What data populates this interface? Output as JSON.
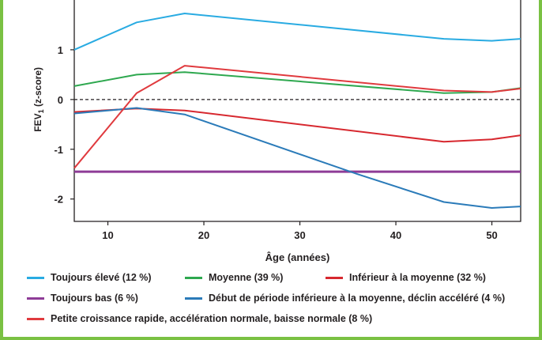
{
  "chart_data": {
    "type": "line",
    "xlabel": "Âge (années)",
    "ylabel_main": "FEV",
    "ylabel_sub": "1",
    "ylabel_rest": " (z-score)",
    "xlim": [
      6.5,
      53
    ],
    "ylim": [
      -2.45,
      2
    ],
    "x_ticks": [
      10,
      20,
      30,
      40,
      50
    ],
    "y_ticks": [
      1,
      0,
      -1,
      -2
    ],
    "x_tick_labels": [
      "10",
      "20",
      "30",
      "40",
      "50"
    ],
    "y_tick_labels": [
      "1",
      "0",
      "-1",
      "-2"
    ],
    "reference_line": 0,
    "series": [
      {
        "name": "Toujours élevé (12 %)",
        "color": "#29abe2",
        "x": [
          6.5,
          13,
          18,
          45,
          50,
          53
        ],
        "y": [
          1.0,
          1.55,
          1.73,
          1.22,
          1.18,
          1.22
        ]
      },
      {
        "name": "Moyenne (39 %)",
        "color": "#2ea84f",
        "x": [
          6.5,
          13,
          18,
          45,
          50,
          53
        ],
        "y": [
          0.27,
          0.5,
          0.55,
          0.13,
          0.15,
          0.23
        ]
      },
      {
        "name": "Inférieur à la moyenne (32 %)",
        "color": "#d7282f",
        "x": [
          6.5,
          13,
          18,
          45,
          50,
          53
        ],
        "y": [
          -0.25,
          -0.18,
          -0.22,
          -0.85,
          -0.8,
          -0.72
        ]
      },
      {
        "name": "Toujours bas (6 %)",
        "color": "#8e3c97",
        "x": [
          6.5,
          53
        ],
        "y": [
          -1.45,
          -1.45
        ]
      },
      {
        "name": "Début de période inférieure à la moyenne, déclin accéléré (4 %)",
        "color": "#2b7bb9",
        "x": [
          6.5,
          13,
          18,
          36,
          45,
          50,
          53
        ],
        "y": [
          -0.28,
          -0.17,
          -0.3,
          -1.5,
          -2.06,
          -2.18,
          -2.15
        ]
      },
      {
        "name": "Petite croissance rapide, accélération normale, baisse normale (8 %)",
        "color": "#e03a3e",
        "x": [
          6.5,
          13,
          18,
          45,
          50,
          53
        ],
        "y": [
          -1.38,
          0.13,
          0.68,
          0.18,
          0.15,
          0.22
        ]
      }
    ]
  }
}
